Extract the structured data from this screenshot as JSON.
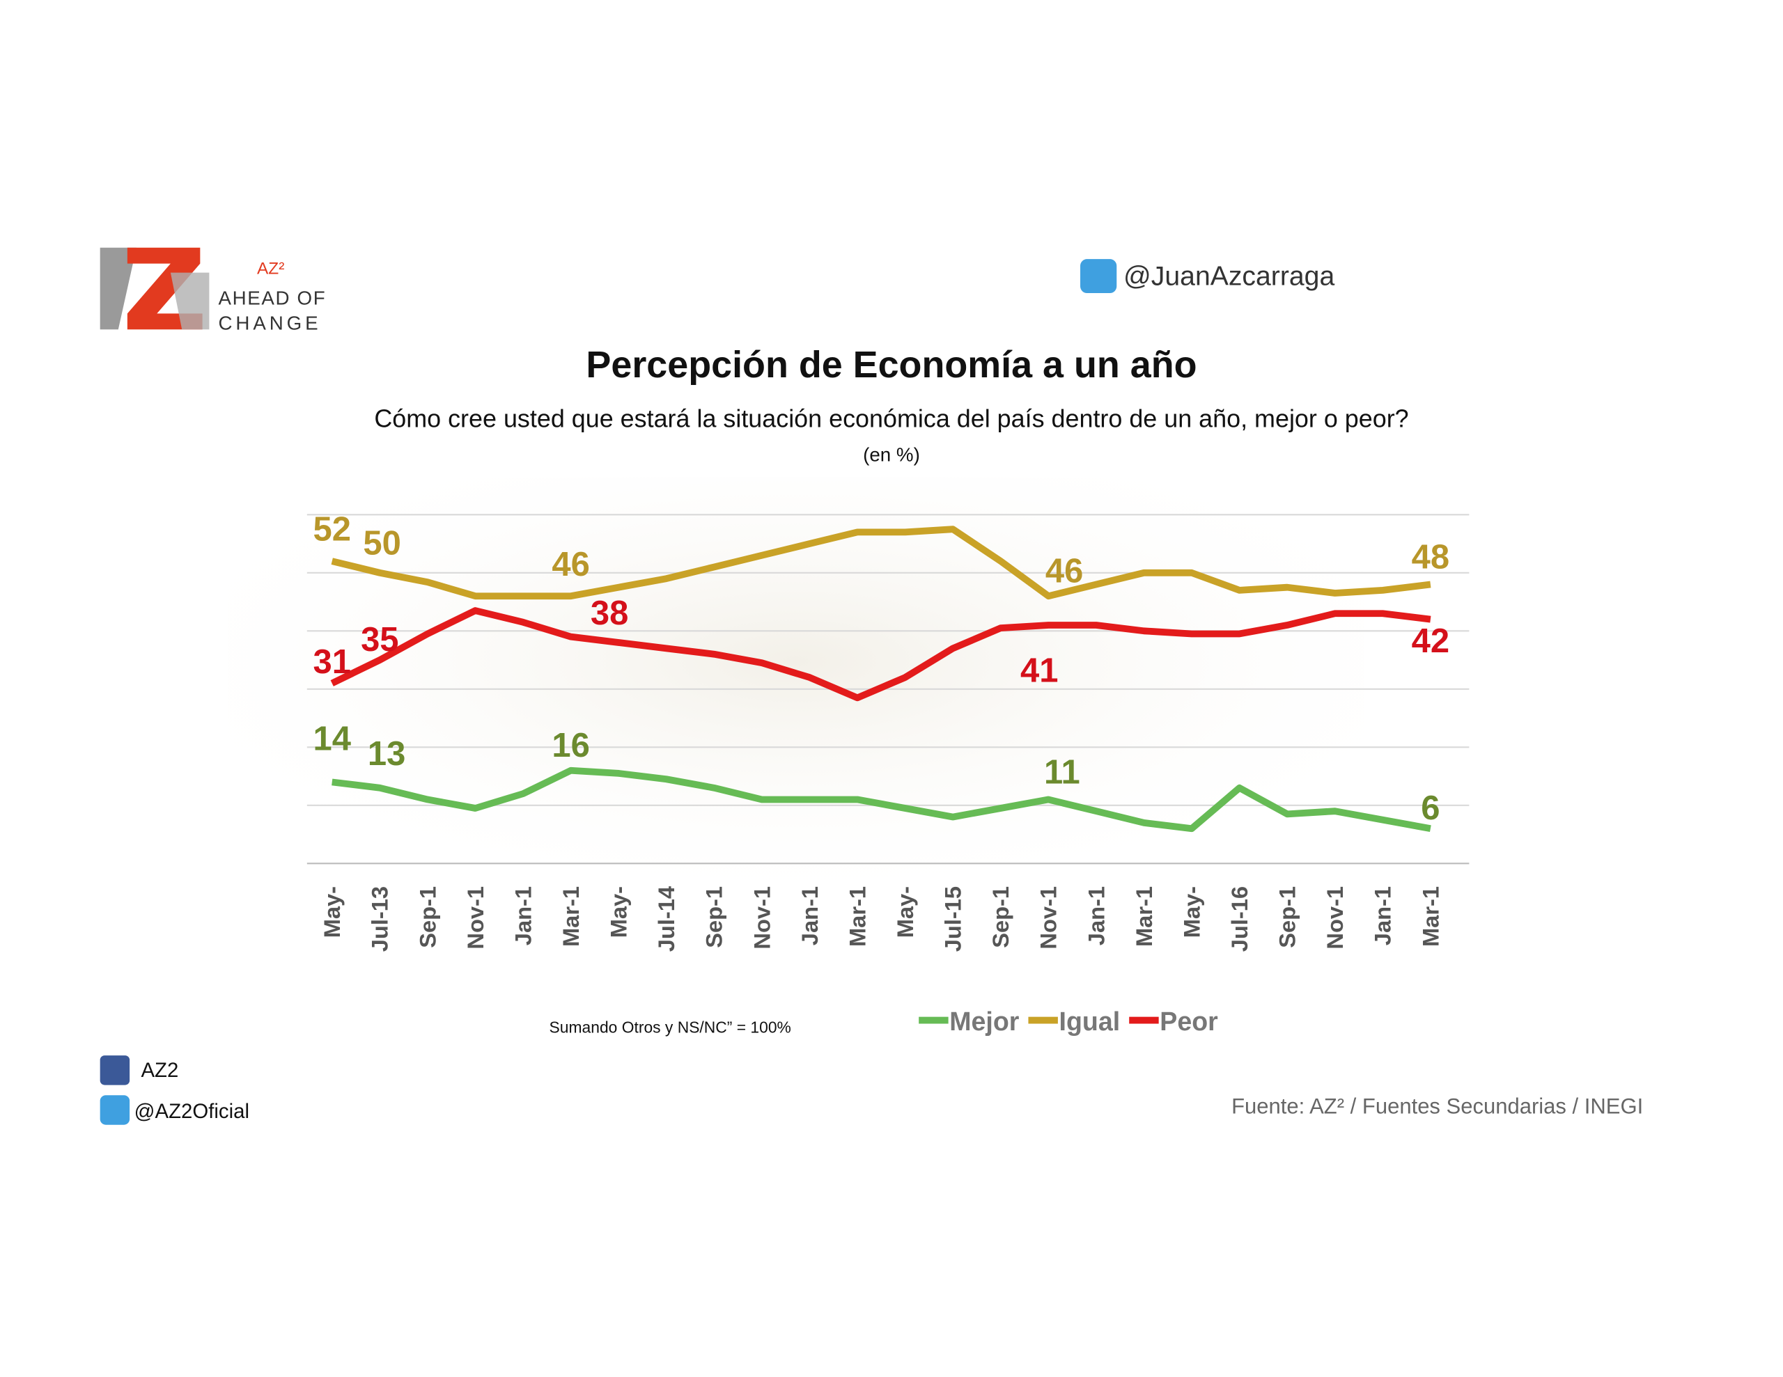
{
  "logo": {
    "mark": "AZ²",
    "line1": "AHEAD OF",
    "line2": "CHANGE"
  },
  "twitter_top": "@JuanAzcarraga",
  "footnote": "Sumando Otros y NS/NC” = 100%",
  "facebook": "AZ2",
  "twitter_bottom": "@AZ2Oficial",
  "source": "Fuente: AZ² / Fuentes Secundarias / INEGI",
  "chart_data": {
    "type": "line",
    "title": "Percepción de Economía a un año",
    "subtitle": "Cómo cree usted que estará la situación económica del país dentro de un año, mejor o peor?",
    "unit_note": "(en %)",
    "categories": [
      "May-",
      "Jul-13",
      "Sep-1",
      "Nov-1",
      "Jan-1",
      "Mar-1",
      "May-",
      "Jul-14",
      "Sep-1",
      "Nov-1",
      "Jan-1",
      "Mar-1",
      "May-",
      "Jul-15",
      "Sep-1",
      "Nov-1",
      "Jan-1",
      "Mar-1",
      "May-",
      "Jul-16",
      "Sep-1",
      "Nov-1",
      "Jan-1",
      "Mar-1"
    ],
    "ylim": [
      0,
      60
    ],
    "yticks": [
      0,
      10,
      20,
      30,
      40,
      50,
      60
    ],
    "grid": true,
    "series": [
      {
        "name": "Mejor",
        "color": "#66bb55",
        "label_color": "#6b8a2e",
        "values": [
          14,
          13,
          11,
          9.5,
          12,
          16,
          15.5,
          14.5,
          13,
          11,
          11,
          11,
          9.5,
          8,
          9.5,
          11,
          9,
          7,
          6,
          13,
          8.5,
          9,
          7.5,
          6
        ],
        "value_labels": [
          "14",
          "13",
          null,
          null,
          null,
          "16",
          null,
          null,
          null,
          null,
          null,
          null,
          null,
          null,
          null,
          "11",
          null,
          null,
          null,
          null,
          null,
          null,
          null,
          "6"
        ]
      },
      {
        "name": "Igual",
        "color": "#c9a227",
        "label_color": "#b8962a",
        "values": [
          52,
          50,
          48.4,
          46,
          46,
          46,
          47.5,
          49,
          51,
          53,
          55,
          57,
          57,
          57.5,
          52,
          46,
          48,
          50,
          50,
          47,
          47.5,
          46.5,
          47,
          48
        ],
        "value_labels": [
          "52",
          "50",
          null,
          null,
          null,
          "46",
          null,
          null,
          null,
          null,
          null,
          null,
          null,
          null,
          null,
          "46",
          null,
          null,
          null,
          null,
          null,
          null,
          null,
          "48"
        ]
      },
      {
        "name": "Peor",
        "color": "#e31b1b",
        "label_color": "#d4101a",
        "values": [
          31,
          35,
          39.5,
          43.5,
          41.5,
          39,
          38,
          37,
          36,
          34.5,
          32,
          28.5,
          32,
          37,
          40.5,
          41,
          41,
          40,
          39.5,
          39.5,
          41,
          43,
          43,
          42
        ],
        "value_labels": [
          "31",
          "35",
          null,
          null,
          null,
          null,
          "38",
          null,
          null,
          null,
          null,
          null,
          null,
          null,
          null,
          "41",
          null,
          null,
          null,
          null,
          null,
          null,
          null,
          "42"
        ]
      }
    ]
  }
}
